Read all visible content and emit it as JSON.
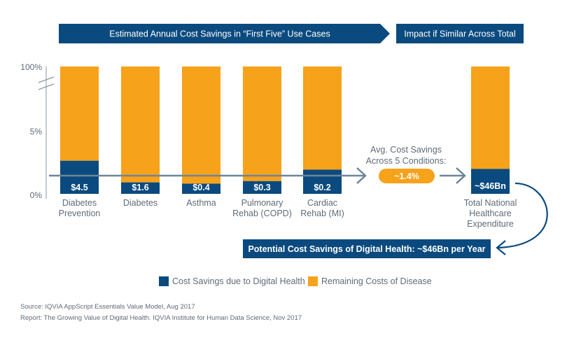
{
  "header": {
    "left_banner": "Estimated Annual Cost Savings in “First Five” Use Cases",
    "right_banner": "Impact if Similar Across Total"
  },
  "colors": {
    "navy": "#0b4a7e",
    "orange": "#f7a21b",
    "arrow_gray": "#6e8599",
    "text_gray": "#5f6b78",
    "pill_text": "#ffffff"
  },
  "chart_data": {
    "type": "bar",
    "stacked": true,
    "title": "Estimated Annual Cost Savings in “First Five” Use Cases",
    "ylabel": "",
    "xlabel": "",
    "y_ticks": [
      "0%",
      "5%",
      "100%"
    ],
    "y_axis_break": true,
    "ylim": [
      0,
      100
    ],
    "categories": [
      [
        "Diabetes",
        "Prevention"
      ],
      [
        "Diabetes"
      ],
      [
        "Asthma"
      ],
      [
        "Pulmonary",
        "Rehab (COPD)"
      ],
      [
        "Cardiac",
        "Rehab (MI)"
      ]
    ],
    "series": [
      {
        "name": "Cost Savings due to Digital Health",
        "color": "#0b4a7e",
        "values_pct": [
          2.6,
          0.9,
          0.8,
          1.0,
          1.9
        ],
        "labels": [
          "$4.5",
          "$1.6",
          "$0.4",
          "$0.3",
          "$0.2"
        ]
      },
      {
        "name": "Remaining Costs of Disease",
        "color": "#f7a21b",
        "values_pct": [
          97.4,
          99.1,
          99.2,
          99.0,
          98.1
        ]
      }
    ],
    "total_bar": {
      "category": [
        "Total National",
        "Healthcare",
        "Expenditure"
      ],
      "savings_pct": 1.4,
      "label": "~$46Bn"
    },
    "legend": [
      "Cost Savings due to Digital Health",
      "Remaining Costs of Disease"
    ],
    "legend_position": "bottom-center"
  },
  "average": {
    "text_line1": "Avg. Cost Savings",
    "text_line2": "Across 5 Conditions:",
    "value": "~1.4%"
  },
  "callout": "Potential Cost Savings of Digital Health: ~$46Bn per Year",
  "sources": [
    "Source: IQVIA AppScript Essentials Value Model, Aug 2017",
    "Report: The Growing Value of Digital Health. IQVIA Institute for Human Data Science, Nov 2017"
  ]
}
